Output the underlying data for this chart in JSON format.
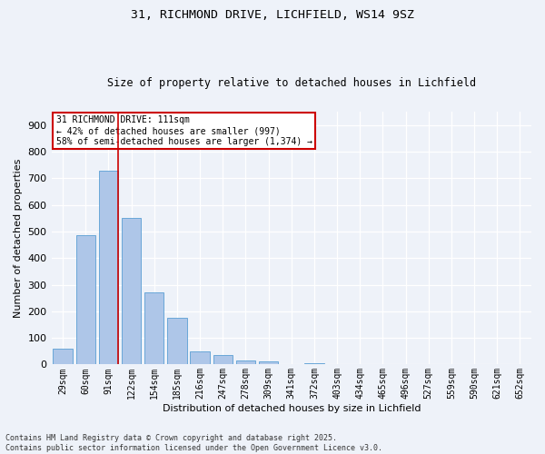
{
  "title_line1": "31, RICHMOND DRIVE, LICHFIELD, WS14 9SZ",
  "title_line2": "Size of property relative to detached houses in Lichfield",
  "xlabel": "Distribution of detached houses by size in Lichfield",
  "ylabel": "Number of detached properties",
  "categories": [
    "29sqm",
    "60sqm",
    "91sqm",
    "122sqm",
    "154sqm",
    "185sqm",
    "216sqm",
    "247sqm",
    "278sqm",
    "309sqm",
    "341sqm",
    "372sqm",
    "403sqm",
    "434sqm",
    "465sqm",
    "496sqm",
    "527sqm",
    "559sqm",
    "590sqm",
    "621sqm",
    "652sqm"
  ],
  "values": [
    60,
    485,
    730,
    553,
    271,
    174,
    48,
    34,
    16,
    12,
    0,
    5,
    0,
    0,
    0,
    0,
    0,
    0,
    0,
    0,
    0
  ],
  "bar_color": "#aec6e8",
  "bar_edge_color": "#5a9fd4",
  "vline_color": "#cc0000",
  "annotation_title": "31 RICHMOND DRIVE: 111sqm",
  "annotation_line2": "← 42% of detached houses are smaller (997)",
  "annotation_line3": "58% of semi-detached houses are larger (1,374) →",
  "annotation_box_color": "#cc0000",
  "ylim": [
    0,
    950
  ],
  "yticks": [
    0,
    100,
    200,
    300,
    400,
    500,
    600,
    700,
    800,
    900
  ],
  "bg_color": "#eef2f9",
  "grid_color": "#ffffff",
  "footer_line1": "Contains HM Land Registry data © Crown copyright and database right 2025.",
  "footer_line2": "Contains public sector information licensed under the Open Government Licence v3.0."
}
